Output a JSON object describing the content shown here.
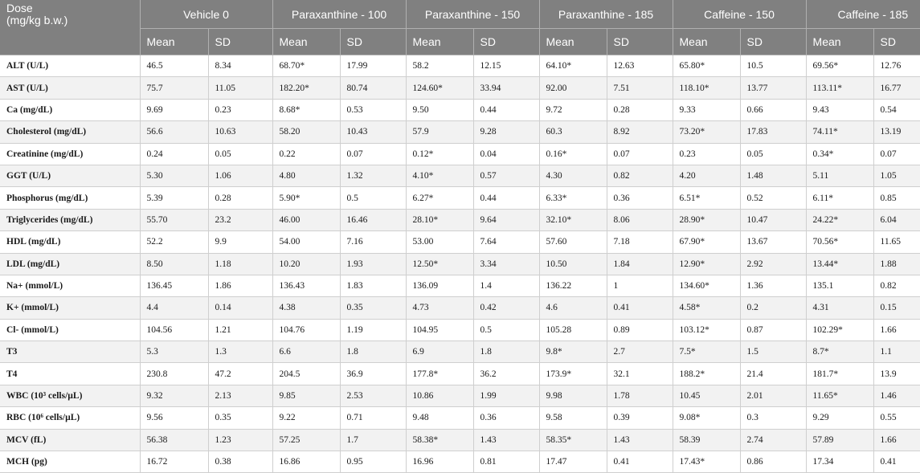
{
  "header": {
    "dose_line1": "Dose",
    "dose_line2": "(mg/kg b.w.)",
    "groups": [
      "Vehicle 0",
      "Paraxanthine - 100",
      "Paraxanthine - 150",
      "Paraxanthine - 185",
      "Caffeine - 150",
      "Caffeine - 185"
    ],
    "mean_label": "Mean",
    "sd_label": "SD"
  },
  "rows": [
    {
      "label": "ALT (U/L)",
      "values": [
        "46.5",
        "8.34",
        "68.70*",
        "17.99",
        "58.2",
        "12.15",
        "64.10*",
        "12.63",
        "65.80*",
        "10.5",
        "69.56*",
        "12.76"
      ]
    },
    {
      "label": "AST (U/L)",
      "values": [
        "75.7",
        "11.05",
        "182.20*",
        "80.74",
        "124.60*",
        "33.94",
        "92.00",
        "7.51",
        "118.10*",
        "13.77",
        "113.11*",
        "16.77"
      ]
    },
    {
      "label": "Ca (mg/dL)",
      "values": [
        "9.69",
        "0.23",
        "8.68*",
        "0.53",
        "9.50",
        "0.44",
        "9.72",
        "0.28",
        "9.33",
        "0.66",
        "9.43",
        "0.54"
      ]
    },
    {
      "label": "Cholesterol (mg/dL)",
      "values": [
        "56.6",
        "10.63",
        "58.20",
        "10.43",
        "57.9",
        "9.28",
        "60.3",
        "8.92",
        "73.20*",
        "17.83",
        "74.11*",
        "13.19"
      ]
    },
    {
      "label": "Creatinine (mg/dL)",
      "values": [
        "0.24",
        "0.05",
        "0.22",
        "0.07",
        "0.12*",
        "0.04",
        "0.16*",
        "0.07",
        "0.23",
        "0.05",
        "0.34*",
        "0.07"
      ]
    },
    {
      "label": "GGT (U/L)",
      "values": [
        "5.30",
        "1.06",
        "4.80",
        "1.32",
        "4.10*",
        "0.57",
        "4.30",
        "0.82",
        "4.20",
        "1.48",
        "5.11",
        "1.05"
      ]
    },
    {
      "label": "Phosphorus (mg/dL)",
      "values": [
        "5.39",
        "0.28",
        "5.90*",
        "0.5",
        "6.27*",
        "0.44",
        "6.33*",
        "0.36",
        "6.51*",
        "0.52",
        "6.11*",
        "0.85"
      ]
    },
    {
      "label": "Triglycerides (mg/dL)",
      "values": [
        "55.70",
        "23.2",
        "46.00",
        "16.46",
        "28.10*",
        "9.64",
        "32.10*",
        "8.06",
        "28.90*",
        "10.47",
        "24.22*",
        "6.04"
      ]
    },
    {
      "label": "HDL (mg/dL)",
      "values": [
        "52.2",
        "9.9",
        "54.00",
        "7.16",
        "53.00",
        "7.64",
        "57.60",
        "7.18",
        "67.90*",
        "13.67",
        "70.56*",
        "11.65"
      ]
    },
    {
      "label": "LDL (mg/dL)",
      "values": [
        "8.50",
        "1.18",
        "10.20",
        "1.93",
        "12.50*",
        "3.34",
        "10.50",
        "1.84",
        "12.90*",
        "2.92",
        "13.44*",
        "1.88"
      ]
    },
    {
      "label": "Na+ (mmol/L)",
      "values": [
        "136.45",
        "1.86",
        "136.43",
        "1.83",
        "136.09",
        "1.4",
        "136.22",
        "1",
        "134.60*",
        "1.36",
        "135.1",
        "0.82"
      ]
    },
    {
      "label": "K+ (mmol/L)",
      "values": [
        "4.4",
        "0.14",
        "4.38",
        "0.35",
        "4.73",
        "0.42",
        "4.6",
        "0.41",
        "4.58*",
        "0.2",
        "4.31",
        "0.15"
      ]
    },
    {
      "label": "Cl- (mmol/L)",
      "values": [
        "104.56",
        "1.21",
        "104.76",
        "1.19",
        "104.95",
        "0.5",
        "105.28",
        "0.89",
        "103.12*",
        "0.87",
        "102.29*",
        "1.66"
      ]
    },
    {
      "label": "T3",
      "values": [
        "5.3",
        "1.3",
        "6.6",
        "1.8",
        "6.9",
        "1.8",
        "9.8*",
        "2.7",
        "7.5*",
        "1.5",
        "8.7*",
        "1.1"
      ]
    },
    {
      "label": "T4",
      "values": [
        "230.8",
        "47.2",
        "204.5",
        "36.9",
        "177.8*",
        "36.2",
        "173.9*",
        "32.1",
        "188.2*",
        "21.4",
        "181.7*",
        "13.9"
      ]
    },
    {
      "label": "WBC (10³ cells/µL)",
      "values": [
        "9.32",
        "2.13",
        "9.85",
        "2.53",
        "10.86",
        "1.99",
        "9.98",
        "1.78",
        "10.45",
        "2.01",
        "11.65*",
        "1.46"
      ]
    },
    {
      "label": "RBC (10⁶ cells/µL)",
      "values": [
        "9.56",
        "0.35",
        "9.22",
        "0.71",
        "9.48",
        "0.36",
        "9.58",
        "0.39",
        "9.08*",
        "0.3",
        "9.29",
        "0.55"
      ]
    },
    {
      "label": "MCV (fL)",
      "values": [
        "56.38",
        "1.23",
        "57.25",
        "1.7",
        "58.38*",
        "1.43",
        "58.35*",
        "1.43",
        "58.39",
        "2.74",
        "57.89",
        "1.66"
      ]
    },
    {
      "label": "MCH (pg)",
      "values": [
        "16.72",
        "0.38",
        "16.86",
        "0.95",
        "16.96",
        "0.81",
        "17.47",
        "0.41",
        "17.43*",
        "0.86",
        "17.34",
        "0.41"
      ]
    }
  ]
}
